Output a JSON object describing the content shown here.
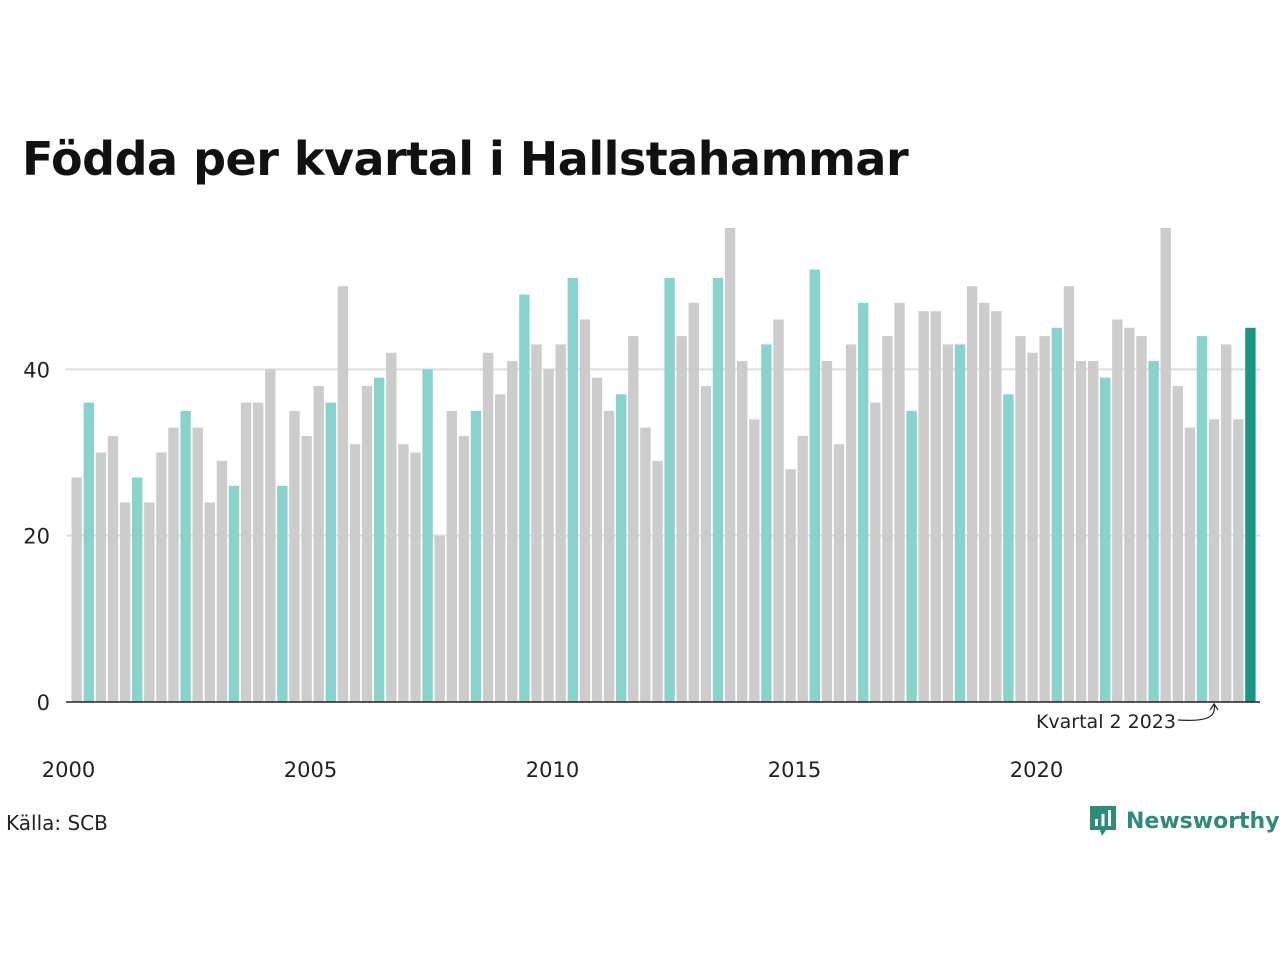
{
  "title": "Födda per kvartal i Hallstahammar",
  "source": "Källa: SCB",
  "brand": {
    "name": "Newsworthy",
    "icon": "bar-chart-speech-bubble-icon"
  },
  "colors": {
    "bar_default": "#cccccc",
    "bar_same_quarter": "#88d4cc",
    "bar_latest": "#1a9685",
    "gridline": "#dddddd",
    "baseline": "#222222",
    "brand": "#2e8b7a"
  },
  "annotation": {
    "label": "Kvartal 2 2023",
    "target_index": 94
  },
  "chart_data": {
    "type": "bar",
    "title": "Födda per kvartal i Hallstahammar",
    "xlabel": "",
    "ylabel": "",
    "ylim": [
      0,
      57
    ],
    "yticks": [
      0,
      20,
      40
    ],
    "grid": true,
    "legend": "none",
    "x_tick_labels": [
      "2000",
      "2005",
      "2010",
      "2015",
      "2020"
    ],
    "start": "2000 Q1",
    "frequency": "quarter",
    "highlight_quarter": 2,
    "values": [
      27,
      36,
      30,
      32,
      24,
      27,
      24,
      30,
      33,
      35,
      33,
      24,
      29,
      26,
      36,
      36,
      40,
      26,
      35,
      32,
      38,
      36,
      50,
      31,
      38,
      39,
      42,
      31,
      30,
      40,
      20,
      35,
      32,
      35,
      42,
      37,
      41,
      49,
      43,
      40,
      43,
      51,
      46,
      39,
      35,
      37,
      44,
      33,
      29,
      51,
      44,
      48,
      38,
      51,
      57,
      41,
      34,
      43,
      46,
      28,
      32,
      52,
      41,
      31,
      43,
      48,
      36,
      44,
      48,
      35,
      47,
      47,
      43,
      43,
      50,
      48,
      47,
      37,
      44,
      42,
      44,
      45,
      50,
      41,
      41,
      39,
      46,
      45,
      44,
      41,
      57,
      38,
      33,
      44,
      34,
      43,
      34,
      45
    ]
  }
}
